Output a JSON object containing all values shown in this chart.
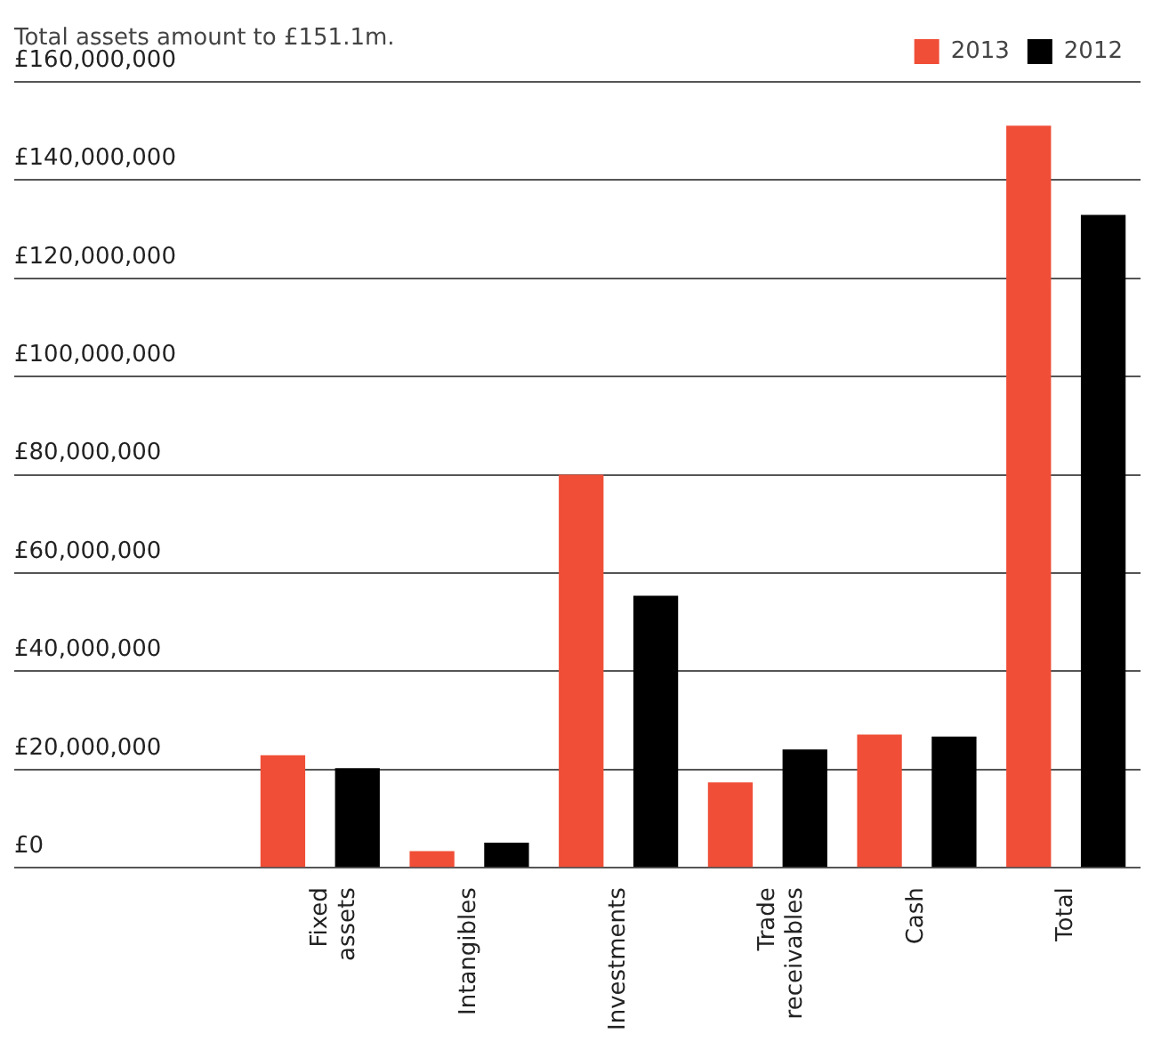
{
  "chart_data": {
    "type": "bar",
    "title": "Total assets amount to £151.1m.",
    "categories": [
      "Fixed assets",
      "Intangibles",
      "Investments",
      "Trade receivables",
      "Cash",
      "Total"
    ],
    "series": [
      {
        "name": "2013",
        "color": "#f04e37",
        "values": [
          22900000,
          3400000,
          80000000,
          17400000,
          27100000,
          151100000
        ]
      },
      {
        "name": "2012",
        "color": "#000000",
        "values": [
          20300000,
          5100000,
          55400000,
          24100000,
          26700000,
          132900000
        ]
      }
    ],
    "ylim": [
      0,
      160000000
    ],
    "yticks": [
      {
        "value": 0,
        "label": "£0"
      },
      {
        "value": 20000000,
        "label": "£20,000,000"
      },
      {
        "value": 40000000,
        "label": "£40,000,000"
      },
      {
        "value": 60000000,
        "label": "£60,000,000"
      },
      {
        "value": 80000000,
        "label": "£80,000,000"
      },
      {
        "value": 100000000,
        "label": "£100,000,000"
      },
      {
        "value": 120000000,
        "label": "£120,000,000"
      },
      {
        "value": 140000000,
        "label": "£140,000,000"
      },
      {
        "value": 160000000,
        "label": "£160,000,000"
      }
    ],
    "grid": "y",
    "legend": "top right"
  }
}
